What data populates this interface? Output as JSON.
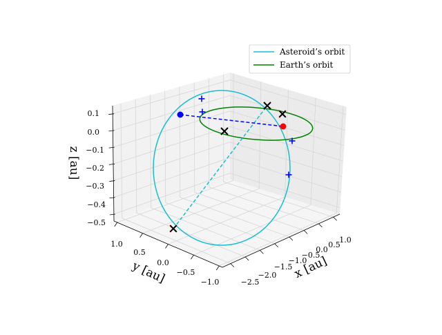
{
  "chart_data": {
    "type": "3d-line",
    "title": "",
    "axes": {
      "x": {
        "label": "x [au]",
        "range": [
          -2.8,
          1.2
        ],
        "ticks": [
          "−2.5",
          "−2.0",
          "−1.5",
          "−1.0",
          "−0.5",
          "0.0",
          "0.5",
          "1.0"
        ]
      },
      "y": {
        "label": "y [au]",
        "range": [
          -1.2,
          1.2
        ],
        "ticks": [
          "1.0",
          "0.5",
          "0.0",
          "−0.5",
          "−1.0"
        ]
      },
      "z": {
        "label": "z [au]",
        "range": [
          -0.5,
          0.15
        ],
        "ticks": [
          "0.1",
          "0.0",
          "−0.1",
          "−0.2",
          "−0.3",
          "−0.4",
          "−0.5"
        ]
      }
    },
    "grid": true,
    "legend": {
      "placement": "top-right",
      "entries": [
        {
          "label": "Asteroid’s orbit",
          "color": "#17becf"
        },
        {
          "label": "Earth’s orbit",
          "color": "#008000"
        }
      ]
    },
    "colors": {
      "asteroid_orbit": "#17becf",
      "earth_orbit": "#008000",
      "connector": "#0000ff",
      "asteroid_marker": "#0000ff",
      "earth_marker": "#ff0000",
      "cross_marker": "#000000",
      "plus_marker": "#0000ff"
    }
  }
}
